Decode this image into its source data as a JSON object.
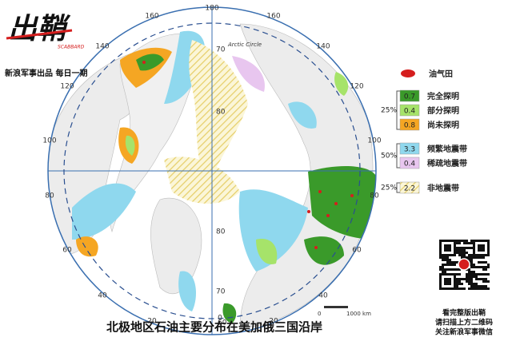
{
  "header": {
    "logo": "出鞘",
    "logo_sub": "SCABBARD",
    "byline": "新浪军事出品 每日一期"
  },
  "map": {
    "longitudes": [
      "180",
      "160",
      "140",
      "120",
      "100",
      "80",
      "60",
      "40",
      "20",
      "160",
      "140",
      "120",
      "100",
      "80",
      "60",
      "40",
      "20",
      "0"
    ],
    "latitudes": [
      "70",
      "80",
      "80",
      "70",
      "60"
    ],
    "arctic_circle": "Arctic Circle",
    "scale": {
      "start": "0",
      "end": "1000 km"
    }
  },
  "legend": {
    "field": "油气田",
    "group1": {
      "share": "25%",
      "items": [
        {
          "value": "0.7",
          "label": "完全探明"
        },
        {
          "value": "0.4",
          "label": "部分探明"
        },
        {
          "value": "0.8",
          "label": "尚未探明"
        }
      ]
    },
    "group2": {
      "share": "50%",
      "items": [
        {
          "value": "3.3",
          "label": "频繁地震带"
        },
        {
          "value": "0.4",
          "label": "稀疏地震带"
        }
      ]
    },
    "group3": {
      "share": "25%",
      "items": [
        {
          "value": "2.2",
          "label": "非地震带"
        }
      ]
    }
  },
  "caption": "北极地区石油主要分布在美加俄三国沿岸",
  "qr": {
    "lines": [
      "看完整版出鞘",
      "请扫描上方二维码",
      "关注新浪军事微信"
    ]
  }
}
